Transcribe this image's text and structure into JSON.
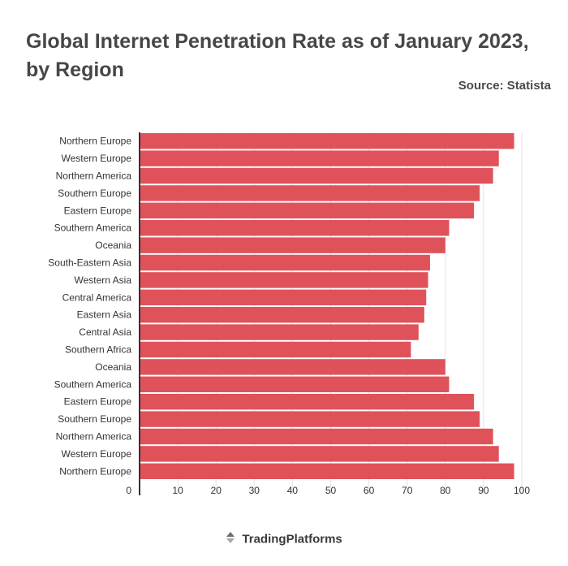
{
  "header": {
    "title": "Global Internet Penetration Rate as of January 2023, by Region",
    "source": "Source: Statista"
  },
  "footer": {
    "brand": "TradingPlatforms",
    "logo_icon": "trading-platforms-logo-icon"
  },
  "colors": {
    "bar": "#e0525a",
    "axis": "#333333",
    "grid": "#e3e3e3",
    "text": "#333333"
  },
  "chart_data": {
    "type": "bar",
    "orientation": "horizontal",
    "categories": [
      "Northern Europe",
      "Western Europe",
      "Northern America",
      "Southern Europe",
      "Eastern Europe",
      "Southern America",
      "Oceania",
      "South-Eastern Asia",
      "Western Asia",
      "Central America",
      "Eastern Asia",
      "Central Asia",
      "Southern Africa",
      "Oceania",
      "Southern America",
      "Eastern Europe",
      "Southern Europe",
      "Northern America",
      "Western Europe",
      "Northern Europe"
    ],
    "values": [
      98,
      94,
      92.5,
      89,
      87.5,
      81,
      80,
      76,
      75.5,
      75,
      74.5,
      73,
      71,
      80,
      81,
      87.5,
      89,
      92.5,
      94,
      98
    ],
    "xlim": [
      0,
      100
    ],
    "xticks": [
      0,
      10,
      20,
      30,
      40,
      50,
      60,
      70,
      80,
      90,
      100
    ],
    "title": "Global Internet Penetration Rate as of January 2023, by Region",
    "xlabel": "",
    "ylabel": "",
    "grid": true,
    "legend": "none"
  }
}
